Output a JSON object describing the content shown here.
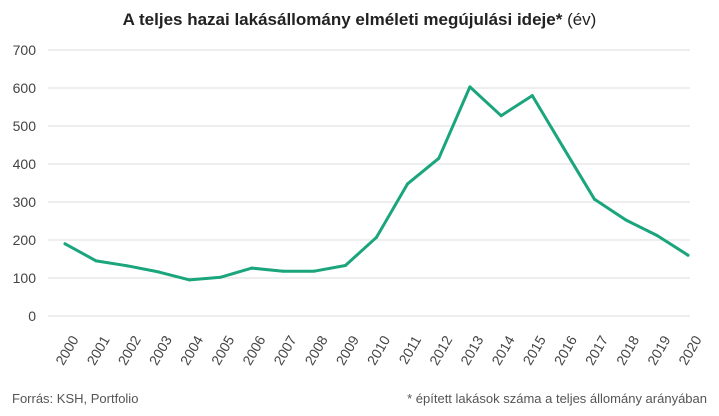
{
  "header": {
    "title_bold": "A teljes hazai lakásállomány elméleti megújulási ideje*",
    "title_unit": "(év)"
  },
  "footer": {
    "source": "Forrás: KSH, Portfolio",
    "footnote": "* épített lakások száma a teljes állomány arányában"
  },
  "colors": {
    "line": "#1aa57c",
    "grid": "#dddddd"
  },
  "chart_data": {
    "type": "line",
    "title": "A teljes hazai lakásállomány elméleti megújulási ideje* (év)",
    "xlabel": "",
    "ylabel": "",
    "x": [
      "2000",
      "2001",
      "2002",
      "2003",
      "2004",
      "2005",
      "2006",
      "2007",
      "2008",
      "2009",
      "2010",
      "2011",
      "2012",
      "2013",
      "2014",
      "2015",
      "2016",
      "2017",
      "2018",
      "2019",
      "2020"
    ],
    "series": [
      {
        "values": [
          190,
          145,
          132,
          116,
          95,
          102,
          126,
          118,
          118,
          133,
          207,
          348,
          415,
          603,
          527,
          580,
          443,
          307,
          253,
          212,
          160
        ]
      }
    ],
    "ylim": [
      0,
      700
    ],
    "yticks": [
      0,
      100,
      200,
      300,
      400,
      500,
      600,
      700
    ],
    "grid": true,
    "legend": "none"
  }
}
